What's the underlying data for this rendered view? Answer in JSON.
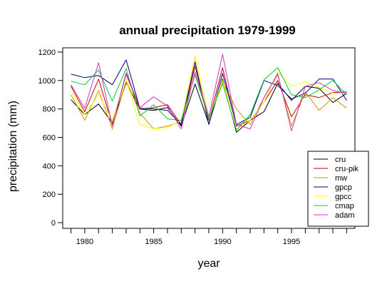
{
  "chart_data": {
    "type": "line",
    "title": "annual precipitation 1979-1999",
    "xlabel": "year",
    "ylabel": "precipitation (mm)",
    "x": [
      1979,
      1980,
      1981,
      1982,
      1983,
      1984,
      1985,
      1986,
      1987,
      1988,
      1989,
      1990,
      1991,
      1992,
      1993,
      1994,
      1995,
      1996,
      1997,
      1998,
      1999
    ],
    "xlim": [
      1978.4,
      1999.6
    ],
    "ylim": [
      -40,
      1230
    ],
    "xticks": [
      1980,
      1985,
      1990,
      1995
    ],
    "yticks": [
      0,
      200,
      400,
      600,
      800,
      1000,
      1200
    ],
    "grid": false,
    "legend_position": "bottom-right",
    "series": [
      {
        "name": "cru",
        "color": "#000000",
        "values": [
          865,
          760,
          835,
          700,
          985,
          800,
          790,
          810,
          680,
          975,
          695,
          1010,
          635,
          720,
          780,
          980,
          860,
          960,
          945,
          845,
          910
        ]
      },
      {
        "name": "cru-pik",
        "color": "#cc0000",
        "values": [
          960,
          780,
          1010,
          690,
          1045,
          800,
          810,
          830,
          690,
          1100,
          720,
          1090,
          680,
          720,
          850,
          1000,
          745,
          900,
          880,
          915,
          920
        ]
      },
      {
        "name": "mw",
        "color": "#cc9900",
        "values": [
          900,
          720,
          930,
          660,
          1000,
          770,
          660,
          680,
          710,
          1165,
          740,
          990,
          800,
          690,
          880,
          1040,
          680,
          920,
          790,
          880,
          805
        ]
      },
      {
        "name": "gpcp",
        "color": "#000080",
        "values": [
          1045,
          1020,
          1035,
          970,
          1145,
          805,
          800,
          790,
          690,
          1130,
          690,
          1050,
          690,
          740,
          1000,
          965,
          870,
          910,
          1010,
          1010,
          860
        ]
      },
      {
        "name": "gpcc",
        "color": "#ffff00",
        "values": [
          930,
          760,
          900,
          720,
          1000,
          690,
          660,
          670,
          720,
          1170,
          730,
          1000,
          660,
          720,
          850,
          1060,
          960,
          990,
          950,
          910,
          910
        ]
      },
      {
        "name": "cmap",
        "color": "#00cc33",
        "values": [
          995,
          970,
          1075,
          855,
          1085,
          750,
          830,
          730,
          720,
          1040,
          730,
          980,
          650,
          760,
          1005,
          1090,
          900,
          880,
          935,
          1000,
          900
        ]
      },
      {
        "name": "adam",
        "color": "#cc33cc",
        "values": [
          970,
          805,
          1125,
          680,
          1055,
          810,
          885,
          820,
          660,
          1060,
          745,
          1185,
          690,
          660,
          880,
          1050,
          645,
          960,
          985,
          930,
          910
        ]
      }
    ]
  }
}
